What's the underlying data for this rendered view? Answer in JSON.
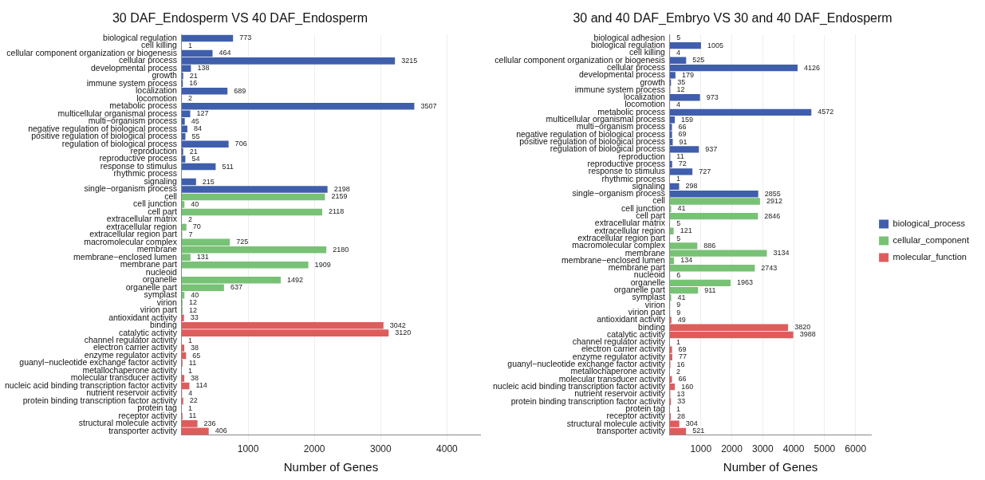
{
  "chart_data": [
    {
      "type": "bar",
      "orientation": "horizontal",
      "title": "30 DAF_Endosperm VS 40 DAF_Endosperm",
      "xlabel": "Number of Genes",
      "categories": [
        "biological regulation",
        "cell killing",
        "cellular component organization or biogenesis",
        "cellular process",
        "developmental process",
        "growth",
        "immune system process",
        "localization",
        "locomotion",
        "metabolic process",
        "multicellular organismal process",
        "multi−organism process",
        "negative regulation of biological process",
        "positive regulation of biological process",
        "regulation of biological process",
        "reproduction",
        "reproductive process",
        "response to stimulus",
        "rhythmic process",
        "signaling",
        "single−organism process",
        "cell",
        "cell junction",
        "cell part",
        "extracellular matrix",
        "extracellular region",
        "extracellular region part",
        "macromolecular complex",
        "membrane",
        "membrane−enclosed lumen",
        "membrane part",
        "nucleoid",
        "organelle",
        "organelle part",
        "symplast",
        "virion",
        "virion part",
        "antioxidant activity",
        "binding",
        "catalytic activity",
        "channel regulator activity",
        "electron carrier activity",
        "enzyme regulator activity",
        "guanyl−nucleotide exchange factor activity",
        "metallochaperone activity",
        "molecular transducer activity",
        "nucleic acid binding transcription factor activity",
        "nutrient reservoir activity",
        "protein binding transcription factor activity",
        "protein tag",
        "receptor activity",
        "structural molecule activity",
        "transporter activity"
      ],
      "series": [
        {
          "color": "#3f5fad",
          "values": [
            773,
            1,
            464,
            3215,
            138,
            21,
            16,
            689,
            2,
            3507,
            127,
            45,
            84,
            55,
            706,
            21,
            54,
            511,
            null,
            215,
            2198,
            null,
            null,
            null,
            null,
            null,
            null,
            null,
            null,
            null,
            null,
            null,
            null,
            null,
            null,
            null,
            null,
            null,
            null,
            null,
            null,
            null,
            null,
            null,
            null,
            null,
            null,
            null,
            null,
            null,
            null,
            null,
            null
          ]
        },
        {
          "color": "#78c275",
          "values": [
            null,
            null,
            null,
            null,
            null,
            null,
            null,
            null,
            null,
            null,
            null,
            null,
            null,
            null,
            null,
            null,
            null,
            null,
            null,
            null,
            null,
            2159,
            40,
            2118,
            2,
            70,
            7,
            725,
            2180,
            131,
            1909,
            null,
            1492,
            637,
            40,
            12,
            12,
            null,
            null,
            null,
            null,
            null,
            null,
            null,
            null,
            null,
            null,
            null,
            null,
            null,
            null,
            null,
            null
          ]
        },
        {
          "color": "#e05c5c",
          "values": [
            null,
            null,
            null,
            null,
            null,
            null,
            null,
            null,
            null,
            null,
            null,
            null,
            null,
            null,
            null,
            null,
            null,
            null,
            null,
            null,
            null,
            null,
            null,
            null,
            null,
            null,
            null,
            null,
            null,
            null,
            null,
            null,
            null,
            null,
            null,
            null,
            null,
            33,
            3042,
            3120,
            1,
            38,
            65,
            11,
            1,
            38,
            114,
            4,
            22,
            1,
            11,
            236,
            406
          ]
        }
      ],
      "xlim": [
        0,
        4500
      ],
      "xticks": [
        1000,
        2000,
        3000,
        4000
      ],
      "grid": "x",
      "legend": false,
      "data_labels": true
    },
    {
      "type": "bar",
      "orientation": "horizontal",
      "title": "30 and 40 DAF_Embryo VS 30 and 40 DAF_Endosperm",
      "xlabel": "Number of Genes",
      "categories": [
        "biological adhesion",
        "biological regulation",
        "cell killing",
        "cellular component organization or biogenesis",
        "cellular process",
        "developmental process",
        "growth",
        "immune system process",
        "localization",
        "locomotion",
        "metabolic process",
        "multicellular organismal process",
        "multi−organism process",
        "negative regulation of biological process",
        "positive regulation of biological process",
        "regulation of biological process",
        "reproduction",
        "reproductive process",
        "response to stimulus",
        "rhythmic process",
        "signaling",
        "single−organism process",
        "cell",
        "cell junction",
        "cell part",
        "extracellular matrix",
        "extracellular region",
        "extracellular region part",
        "macromolecular complex",
        "membrane",
        "membrane−enclosed lumen",
        "membrane part",
        "nucleoid",
        "organelle",
        "organelle part",
        "symplast",
        "virion",
        "virion part",
        "antioxidant activity",
        "binding",
        "catalytic activity",
        "channel regulator activity",
        "electron carrier activity",
        "enzyme regulator activity",
        "guanyl−nucleotide exchange factor activity",
        "metallochaperone activity",
        "molecular transducer activity",
        "nucleic acid binding transcription factor activity",
        "nutrient reservoir activity",
        "protein binding transcription factor activity",
        "protein tag",
        "receptor activity",
        "structural molecule activity",
        "transporter activity"
      ],
      "series": [
        {
          "name": "biological_process",
          "color": "#3f5fad",
          "values": [
            5,
            1005,
            4,
            525,
            4126,
            179,
            35,
            12,
            973,
            4,
            4572,
            159,
            66,
            69,
            91,
            937,
            11,
            72,
            727,
            1,
            298,
            2855,
            null,
            null,
            null,
            null,
            null,
            null,
            null,
            null,
            null,
            null,
            null,
            null,
            null,
            null,
            null,
            null,
            null,
            null,
            null,
            null,
            null,
            null,
            null,
            null,
            null,
            null,
            null,
            null,
            null,
            null,
            null,
            null
          ]
        },
        {
          "name": "cellular_component",
          "color": "#78c275",
          "values": [
            null,
            null,
            null,
            null,
            null,
            null,
            null,
            null,
            null,
            null,
            null,
            null,
            null,
            null,
            null,
            null,
            null,
            null,
            null,
            null,
            null,
            null,
            2912,
            41,
            2846,
            5,
            121,
            5,
            886,
            3134,
            134,
            2743,
            6,
            1963,
            911,
            41,
            9,
            9,
            null,
            null,
            null,
            null,
            null,
            null,
            null,
            null,
            null,
            null,
            null,
            null,
            null,
            null,
            null,
            null
          ]
        },
        {
          "name": "molecular_function",
          "color": "#e05c5c",
          "values": [
            null,
            null,
            null,
            null,
            null,
            null,
            null,
            null,
            null,
            null,
            null,
            null,
            null,
            null,
            null,
            null,
            null,
            null,
            null,
            null,
            null,
            null,
            null,
            null,
            null,
            null,
            null,
            null,
            null,
            null,
            null,
            null,
            null,
            null,
            null,
            null,
            null,
            null,
            49,
            3820,
            3988,
            1,
            69,
            77,
            16,
            2,
            66,
            160,
            13,
            33,
            1,
            28,
            304,
            521
          ]
        }
      ],
      "xlim": [
        0,
        6500
      ],
      "xticks": [
        1000,
        2000,
        3000,
        4000,
        5000,
        6000
      ],
      "grid": "x",
      "legend": "right",
      "data_labels": true
    }
  ]
}
